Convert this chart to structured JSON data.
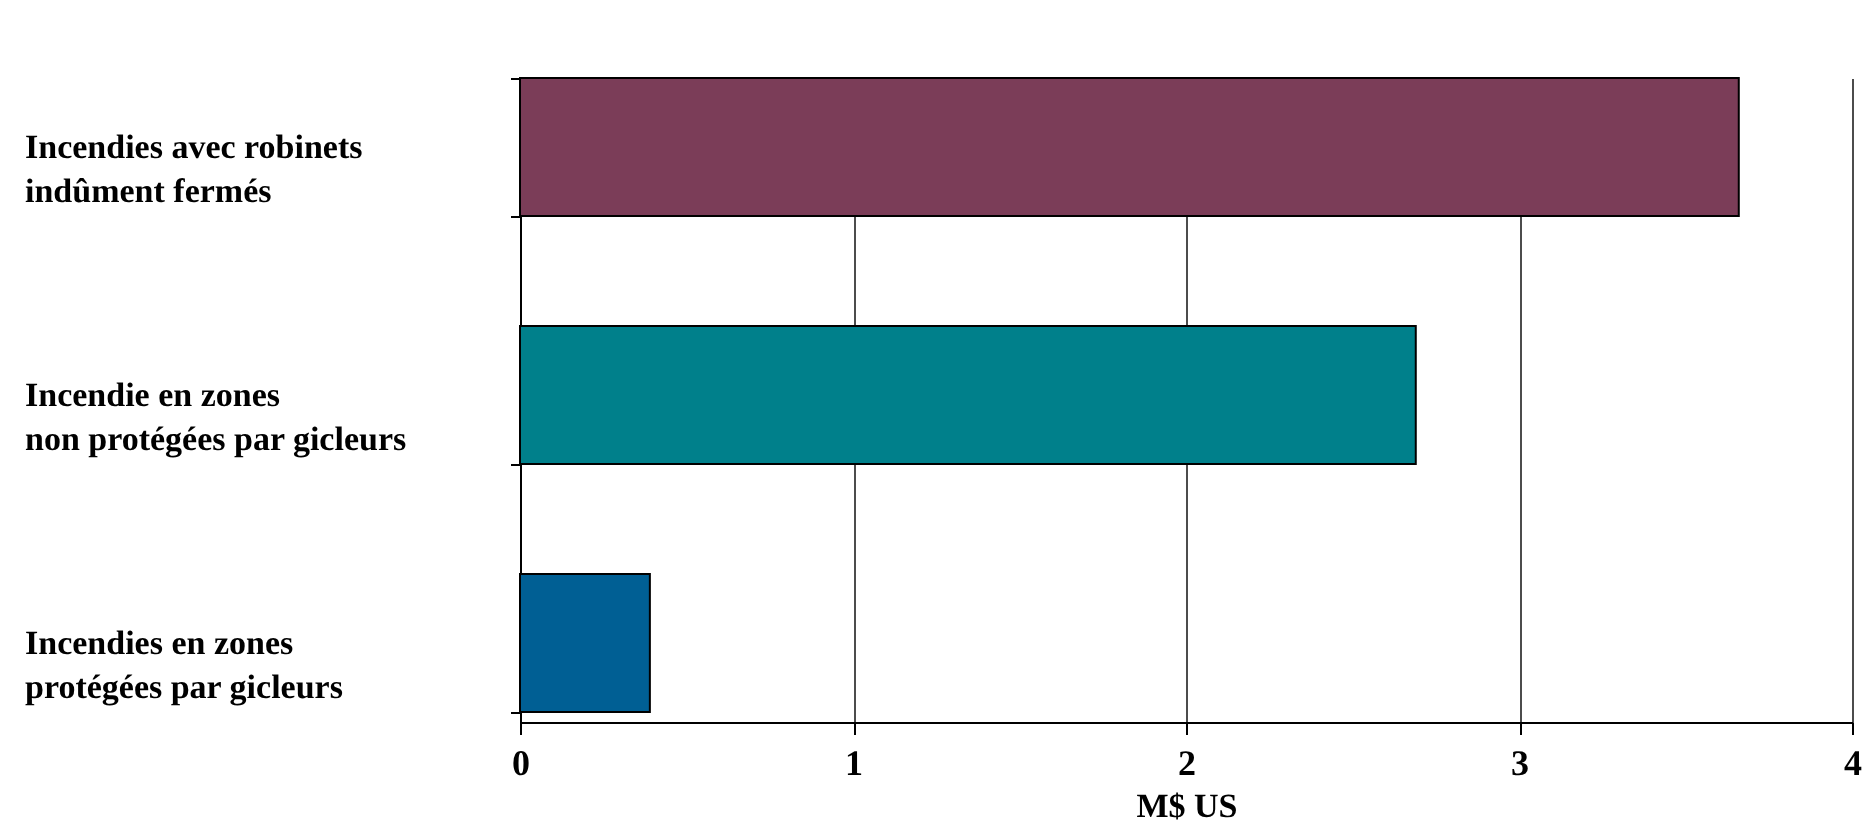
{
  "chart_data": {
    "type": "bar",
    "orientation": "horizontal",
    "xlabel": "M$ US",
    "categories": [
      "Incendies avec robinets\nindûment fermés",
      "Incendie en zones\nnon protégées par gicleurs",
      "Incendies en zones\nprotégées par gicleurs"
    ],
    "values": [
      3.66,
      2.69,
      0.39
    ],
    "colors": [
      "#7b3d58",
      "#00808b",
      "#005f94"
    ],
    "xlim": [
      0,
      4
    ],
    "xticks": [
      0,
      1,
      2,
      3,
      4
    ],
    "grid": "x"
  }
}
